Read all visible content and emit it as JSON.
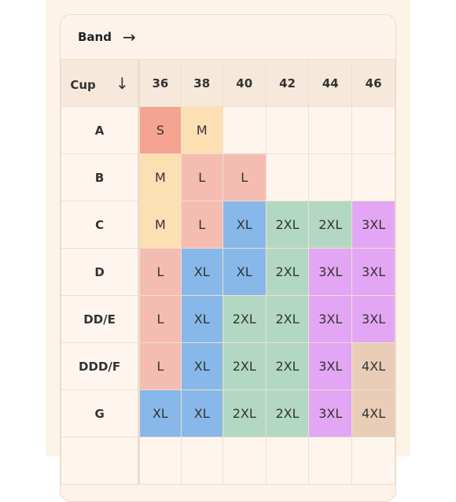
{
  "header": {
    "band_label": "Band",
    "band_arrow": "→"
  },
  "table": {
    "cup_label": "Cup",
    "cup_arrow": "↓",
    "columns": [
      "36",
      "38",
      "40",
      "42",
      "44",
      "46"
    ],
    "rows": [
      {
        "cup": "A",
        "sizes": [
          "S",
          "M",
          "",
          "",
          "",
          ""
        ]
      },
      {
        "cup": "B",
        "sizes": [
          "M",
          "L",
          "L",
          "",
          "",
          ""
        ]
      },
      {
        "cup": "C",
        "sizes": [
          "M",
          "L",
          "XL",
          "2XL",
          "2XL",
          "3XL"
        ]
      },
      {
        "cup": "D",
        "sizes": [
          "L",
          "XL",
          "XL",
          "2XL",
          "3XL",
          "3XL"
        ]
      },
      {
        "cup": "DD/E",
        "sizes": [
          "L",
          "XL",
          "2XL",
          "2XL",
          "3XL",
          "3XL"
        ]
      },
      {
        "cup": "DDD/F",
        "sizes": [
          "L",
          "XL",
          "2XL",
          "2XL",
          "3XL",
          "4XL"
        ]
      },
      {
        "cup": "G",
        "sizes": [
          "XL",
          "XL",
          "2XL",
          "2XL",
          "3XL",
          "4XL"
        ]
      },
      {
        "cup": "",
        "sizes": [
          "",
          "",
          "",
          "",
          "",
          ""
        ]
      }
    ]
  },
  "size_colors": {
    "S": "#f5a491",
    "M": "#fddfb4",
    "L": "#f5bcb2",
    "XL": "#87b8e9",
    "2XL": "#b2d8c4",
    "3XL": "#e3a6f4",
    "4XL": "#e9cdb6"
  }
}
